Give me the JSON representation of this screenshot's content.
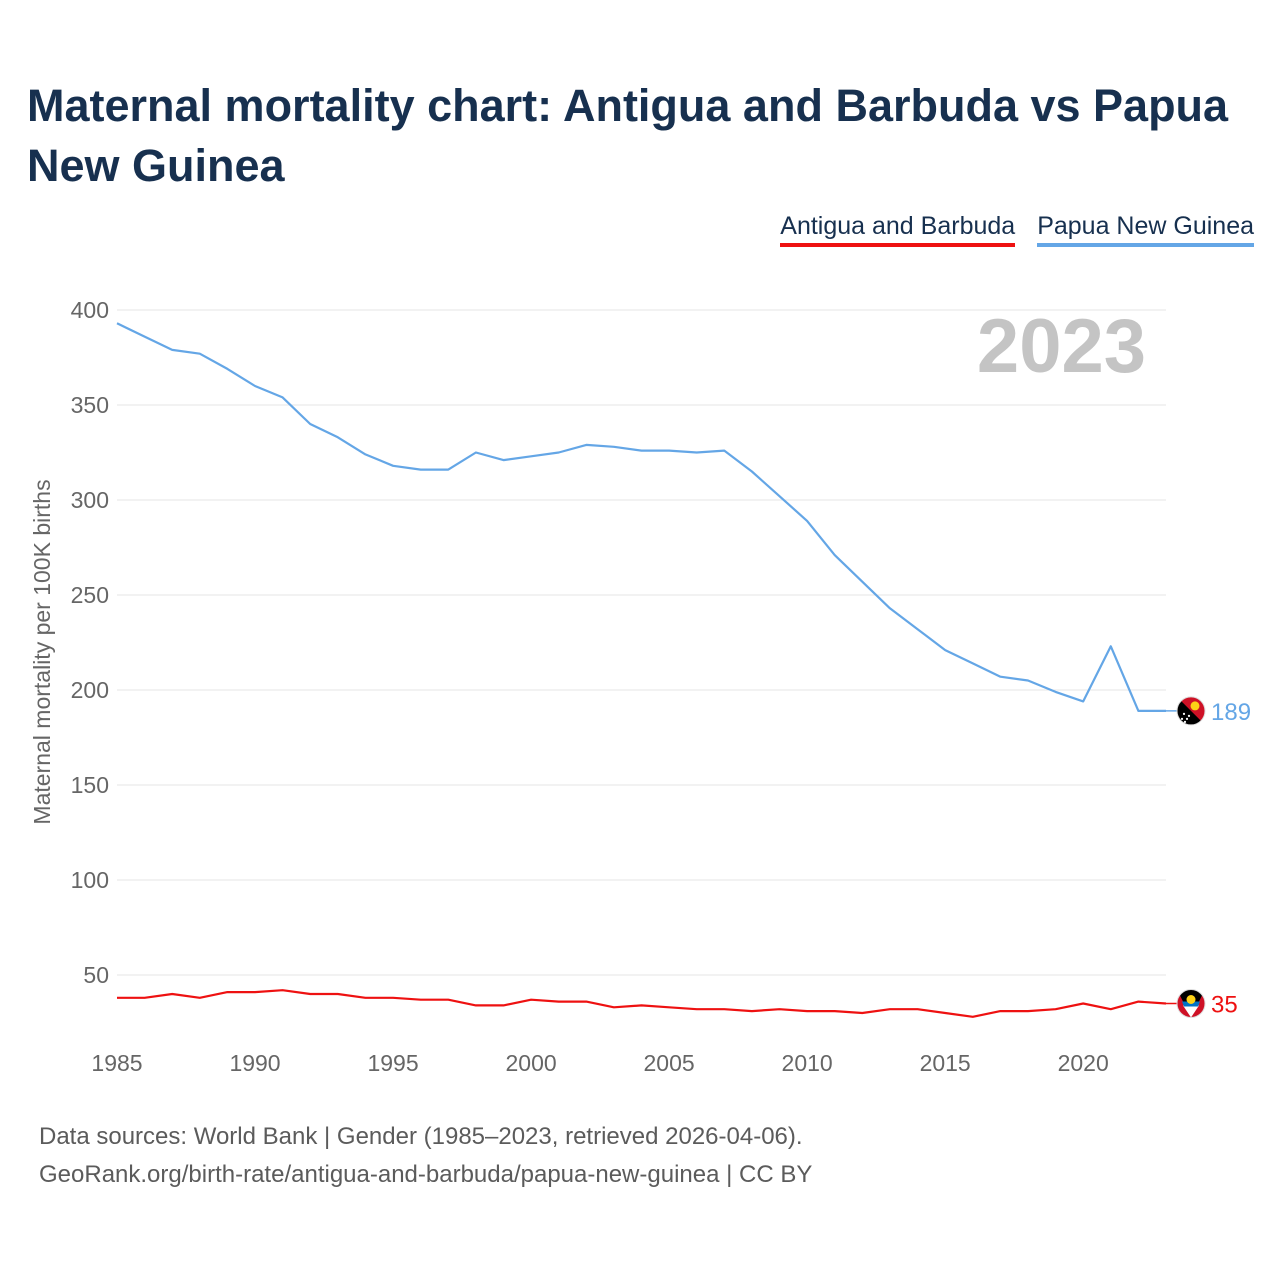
{
  "title": "Maternal mortality chart: Antigua and Barbuda vs Papua New Guinea",
  "footer": {
    "line1": "Data sources: World Bank | Gender (1985–2023, retrieved 2026-04-06).",
    "line2": "GeoRank.org/birth-rate/antigua-and-barbuda/papua-new-guinea | CC BY"
  },
  "chart_data": {
    "type": "line",
    "title": "Maternal mortality chart: Antigua and Barbuda vs Papua New Guinea",
    "ylabel": "Maternal mortality per 100K births",
    "xlabel": "",
    "year_watermark": "2023",
    "x": [
      1985,
      1986,
      1987,
      1988,
      1989,
      1990,
      1991,
      1992,
      1993,
      1994,
      1995,
      1996,
      1997,
      1998,
      1999,
      2000,
      2001,
      2002,
      2003,
      2004,
      2005,
      2006,
      2007,
      2008,
      2009,
      2010,
      2011,
      2012,
      2013,
      2014,
      2015,
      2016,
      2017,
      2018,
      2019,
      2020,
      2021,
      2022,
      2023
    ],
    "xlim": [
      1985,
      2023
    ],
    "ylim": [
      20,
      400
    ],
    "xticks": [
      1985,
      1990,
      1995,
      2000,
      2005,
      2010,
      2015,
      2020
    ],
    "yticks": [
      50,
      100,
      150,
      200,
      250,
      300,
      350,
      400
    ],
    "grid": true,
    "legend_position": "top-right",
    "series": [
      {
        "name": "Antigua and Barbuda",
        "color": "#ee1111",
        "end_label": "35",
        "flag_icon": "antigua-and-barbuda-flag-icon",
        "values": [
          38,
          38,
          40,
          38,
          41,
          41,
          42,
          40,
          40,
          38,
          38,
          37,
          37,
          34,
          34,
          37,
          36,
          36,
          33,
          34,
          33,
          32,
          32,
          31,
          32,
          31,
          31,
          30,
          32,
          32,
          30,
          28,
          31,
          31,
          32,
          35,
          32,
          36,
          35
        ]
      },
      {
        "name": "Papua New Guinea",
        "color": "#64a6e6",
        "end_label": "189",
        "flag_icon": "papua-new-guinea-flag-icon",
        "values": [
          393,
          386,
          379,
          377,
          369,
          360,
          354,
          340,
          333,
          324,
          318,
          316,
          316,
          325,
          321,
          323,
          325,
          329,
          328,
          326,
          326,
          325,
          326,
          315,
          302,
          289,
          271,
          257,
          243,
          232,
          221,
          214,
          207,
          205,
          199,
          194,
          223,
          189,
          189
        ]
      }
    ]
  }
}
